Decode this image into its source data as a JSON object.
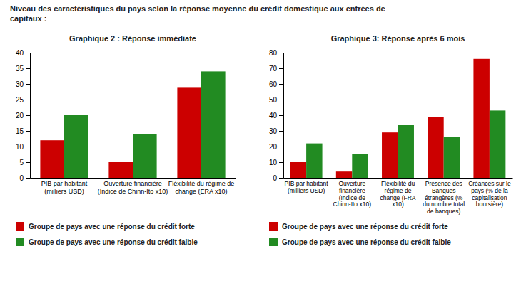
{
  "title": "Niveau des caractéristiques du pays selon la réponse moyenne du crédit domestique aux entrées de\ncapitaux :",
  "chart_data": [
    {
      "type": "bar",
      "title": "Graphique 2 : Réponse immédiate",
      "categories": [
        "PIB par habitant\n(milliers USD)",
        "Ouverture financière\n(Indice de Chinn-Ito x10)",
        "Fléxibilité du régime de\nchange (ERA x10)"
      ],
      "series": [
        {
          "name": "Groupe de pays avec une réponse du crédit forte",
          "color": "#CC0000",
          "values": [
            12,
            5,
            29
          ]
        },
        {
          "name": "Groupe de pays avec une réponse du crédit faible",
          "color": "#228B22",
          "values": [
            20,
            14,
            34
          ]
        }
      ],
      "ylim": [
        0,
        40
      ],
      "yticks": [
        0,
        5,
        10,
        15,
        20,
        25,
        30,
        35,
        40
      ],
      "grid": false,
      "legend": "bottom"
    },
    {
      "type": "bar",
      "title": "Graphique 3: Réponse après 6 mois",
      "categories": [
        "PIB par habitant\n(milliers USD)",
        "Ouverture\nfinancière\n(Indice de\nChinn-Ito x10)",
        "Fléxibilité du\nrégime de\nchange (FRA\nx10)",
        "Présence des\nBanques\nétrangères (%\ndu nombre total\nde banques)",
        "Créances sur le\npays (% de la\ncapitalisation\nboursière)"
      ],
      "series": [
        {
          "name": "Groupe de pays avec une réponse du crédit forte",
          "color": "#CC0000",
          "values": [
            10,
            4,
            29,
            39,
            76
          ]
        },
        {
          "name": "Groupe de pays avec une réponse du crédit faible",
          "color": "#228B22",
          "values": [
            22,
            15,
            34,
            26,
            43
          ]
        }
      ],
      "ylim": [
        0,
        80
      ],
      "yticks": [
        0,
        10,
        20,
        30,
        40,
        50,
        60,
        70,
        80
      ],
      "grid": false,
      "legend": "bottom"
    }
  ]
}
